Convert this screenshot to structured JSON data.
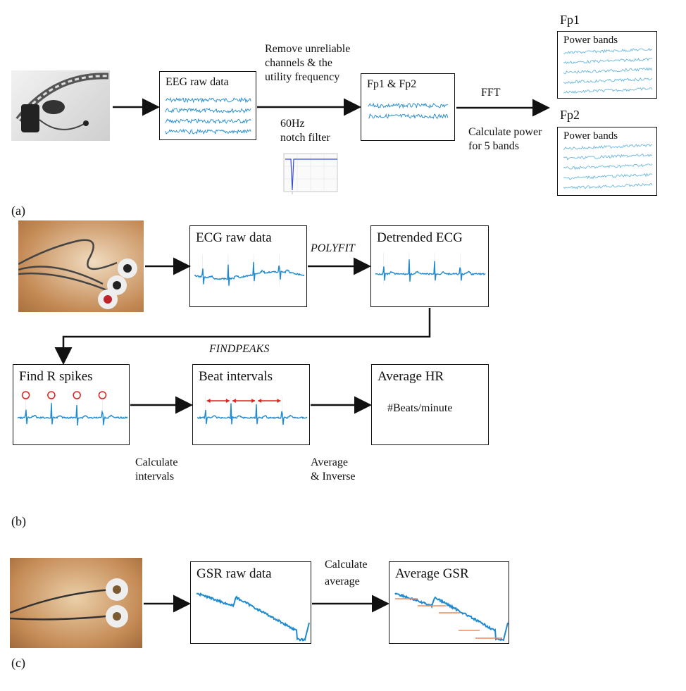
{
  "panels": {
    "a": "(a)",
    "b": "(b)",
    "c": "(c)"
  },
  "eeg": {
    "raw_box": "EEG raw data",
    "remove_label": "Remove unreliable\nchannels & the\nutility frequency",
    "notch_label": "60Hz\nnotch filter",
    "fp_box": "Fp1 & Fp2",
    "fft": "FFT",
    "calc_power": "Calculate power\nfor 5 bands",
    "fp1": "Fp1",
    "fp2": "Fp2",
    "power_bands": "Power bands"
  },
  "ecg": {
    "raw_box": "ECG raw data",
    "polyfit": "POLYFIT",
    "detrended_box": "Detrended ECG",
    "findpeaks": "FINDPEAKS",
    "r_spikes_box": "Find R spikes",
    "beat_box": "Beat intervals",
    "avg_hr_box": "Average HR",
    "beats_per_minute": "#Beats/minute",
    "calc_intervals": "Calculate\nintervals",
    "avg_inverse": "Average\n& Inverse"
  },
  "gsr": {
    "raw_box": "GSR raw data",
    "calc_avg": "Calculate\naverage",
    "avg_box": "Average GSR"
  },
  "colors": {
    "signal": "#1f8ad0",
    "light_signal": "#6ab7de",
    "marker": "#e02020",
    "avg_line": "#f08a5a",
    "wood": "#c48a55"
  }
}
